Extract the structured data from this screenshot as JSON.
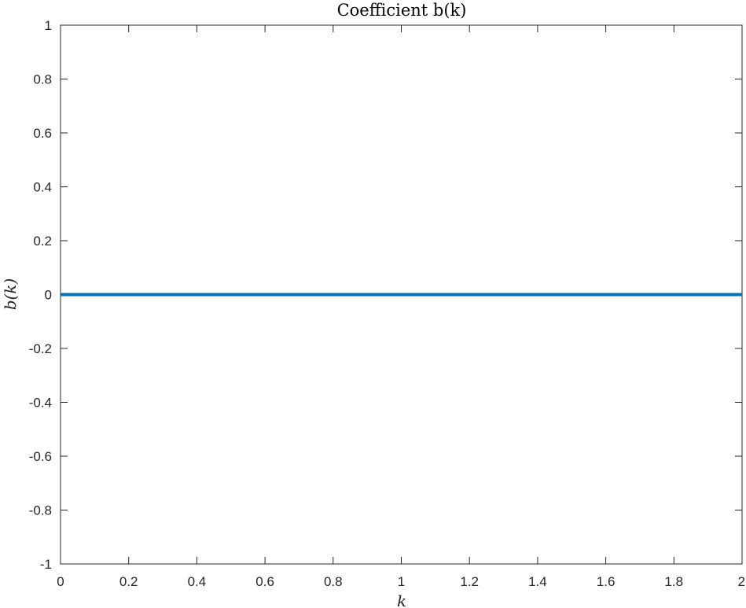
{
  "chart_data": {
    "type": "line",
    "title": "Coefficient b(k)",
    "xlabel": "k",
    "ylabel": "b(k)",
    "xlim": [
      0,
      2
    ],
    "ylim": [
      -1,
      1
    ],
    "xticks": [
      "0",
      "0.2",
      "0.4",
      "0.6",
      "0.8",
      "1",
      "1.2",
      "1.4",
      "1.6",
      "1.8",
      "2"
    ],
    "yticks": [
      "-1",
      "-0.8",
      "-0.6",
      "-0.4",
      "-0.2",
      "0",
      "0.2",
      "0.4",
      "0.6",
      "0.8",
      "1"
    ],
    "grid": false,
    "series": [
      {
        "color": "#0072BD",
        "x": [
          0,
          0.5,
          1,
          1.5,
          2
        ],
        "y": [
          0,
          0,
          0,
          0,
          0
        ]
      }
    ]
  }
}
